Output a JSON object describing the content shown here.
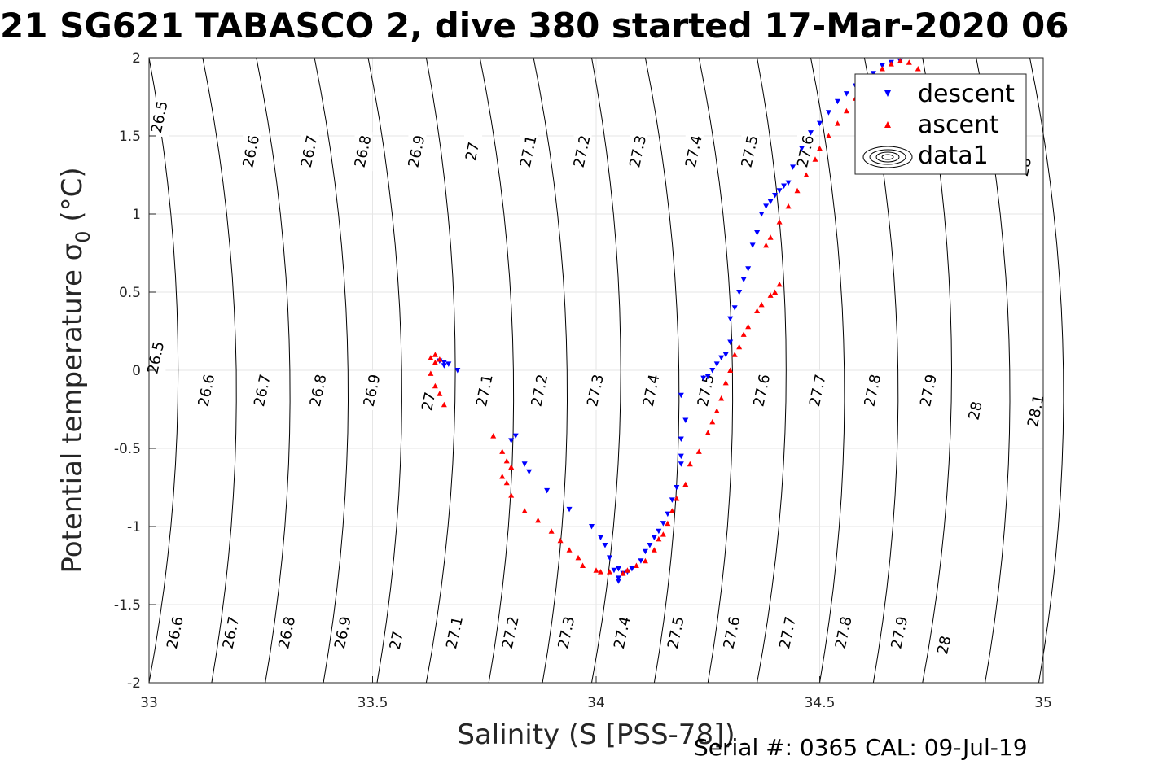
{
  "chart_data": {
    "type": "scatter",
    "title": "21 SG621 TABASCO 2, dive 380 started 17-Mar-2020 06",
    "xlabel": "Salinity (S [PSS-78])",
    "ylabel": "Potential temperature σ",
    "ylabel_sub": "0",
    "ylabel_unit": " (°C)",
    "xlim": [
      33,
      35
    ],
    "ylim": [
      -2,
      2
    ],
    "x_ticks": [
      33,
      33.5,
      34,
      34.5,
      35
    ],
    "x_tick_labels": [
      "33",
      "33.5",
      "34",
      "34.5",
      "35"
    ],
    "y_ticks": [
      -2,
      -1.5,
      -1,
      -0.5,
      0,
      0.5,
      1,
      1.5,
      2
    ],
    "y_tick_labels": [
      "-2",
      "-1.5",
      "-1",
      "-0.5",
      "0",
      "0.5",
      "1",
      "1.5",
      "2"
    ],
    "grid": true,
    "legend": {
      "placement": "top-right",
      "entries": [
        {
          "label": "descent",
          "color": "#0000ff",
          "marker": "triangle-down"
        },
        {
          "label": "ascent",
          "color": "#ff0000",
          "marker": "triangle-up"
        },
        {
          "label": "data1",
          "color": "#000000",
          "marker": "contour"
        }
      ]
    },
    "isopycnals": [
      {
        "sigma": 26.5,
        "s_at_2": 33.0,
        "s_at_0": 32.99
      },
      {
        "sigma": 26.6,
        "s_at_2": 33.12,
        "s_at_0": 33.12
      },
      {
        "sigma": 26.7,
        "s_at_2": 33.24,
        "s_at_0": 33.24
      },
      {
        "sigma": 26.8,
        "s_at_2": 33.37,
        "s_at_0": 33.37
      },
      {
        "sigma": 26.9,
        "s_at_2": 33.49,
        "s_at_0": 33.49
      },
      {
        "sigma": 27.0,
        "s_at_2": 33.62,
        "s_at_0": 33.61
      },
      {
        "sigma": 27.1,
        "s_at_2": 33.74,
        "s_at_0": 33.74
      },
      {
        "sigma": 27.2,
        "s_at_2": 33.86,
        "s_at_0": 33.86
      },
      {
        "sigma": 27.3,
        "s_at_2": 33.99,
        "s_at_0": 33.98
      },
      {
        "sigma": 27.4,
        "s_at_2": 34.11,
        "s_at_0": 34.11
      },
      {
        "sigma": 27.5,
        "s_at_2": 34.23,
        "s_at_0": 34.23
      },
      {
        "sigma": 27.6,
        "s_at_2": 34.36,
        "s_at_0": 34.35
      },
      {
        "sigma": 27.7,
        "s_at_2": 34.48,
        "s_at_0": 34.48
      },
      {
        "sigma": 27.8,
        "s_at_2": 34.6,
        "s_at_0": 34.6
      },
      {
        "sigma": 27.9,
        "s_at_2": 34.73,
        "s_at_0": 34.72
      },
      {
        "sigma": 28.0,
        "s_at_2": 34.85,
        "s_at_0": 34.85
      },
      {
        "sigma": 28.1,
        "s_at_2": 34.97,
        "s_at_0": 34.97
      }
    ],
    "contour_labels": [
      {
        "text": "26.5",
        "s": 33.025,
        "t": 1.62
      },
      {
        "text": "26.6",
        "s": 33.23,
        "t": 1.4
      },
      {
        "text": "26.7",
        "s": 33.36,
        "t": 1.4
      },
      {
        "text": "26.8",
        "s": 33.48,
        "t": 1.4
      },
      {
        "text": "26.9",
        "s": 33.6,
        "t": 1.4
      },
      {
        "text": "27",
        "s": 33.725,
        "t": 1.4
      },
      {
        "text": "27.1",
        "s": 33.85,
        "t": 1.4
      },
      {
        "text": "27.2",
        "s": 33.97,
        "t": 1.4
      },
      {
        "text": "27.3",
        "s": 34.095,
        "t": 1.4
      },
      {
        "text": "27.4",
        "s": 34.22,
        "t": 1.4
      },
      {
        "text": "27.5",
        "s": 34.345,
        "t": 1.4
      },
      {
        "text": "27.6",
        "s": 34.47,
        "t": 1.4
      },
      {
        "text": "28",
        "s": 34.96,
        "t": 1.3
      },
      {
        "text": "26.5",
        "s": 33.017,
        "t": 0.08
      },
      {
        "text": "26.6",
        "s": 33.13,
        "t": -0.13
      },
      {
        "text": "26.7",
        "s": 33.255,
        "t": -0.13
      },
      {
        "text": "26.8",
        "s": 33.38,
        "t": -0.13
      },
      {
        "text": "26.9",
        "s": 33.5,
        "t": -0.13
      },
      {
        "text": "27",
        "s": 33.627,
        "t": -0.2
      },
      {
        "text": "27.1",
        "s": 33.752,
        "t": -0.13
      },
      {
        "text": "27.2",
        "s": 33.875,
        "t": -0.13
      },
      {
        "text": "27.3",
        "s": 34.0,
        "t": -0.13
      },
      {
        "text": "27.4",
        "s": 34.125,
        "t": -0.13
      },
      {
        "text": "27.5",
        "s": 34.247,
        "t": -0.13
      },
      {
        "text": "27.6",
        "s": 34.372,
        "t": -0.13
      },
      {
        "text": "27.7",
        "s": 34.497,
        "t": -0.13
      },
      {
        "text": "27.8",
        "s": 34.62,
        "t": -0.13
      },
      {
        "text": "27.9",
        "s": 34.745,
        "t": -0.13
      },
      {
        "text": "28",
        "s": 34.85,
        "t": -0.26
      },
      {
        "text": "28.1",
        "s": 34.985,
        "t": -0.26
      },
      {
        "text": "26.6",
        "s": 33.06,
        "t": -1.68
      },
      {
        "text": "26.7",
        "s": 33.185,
        "t": -1.68
      },
      {
        "text": "26.8",
        "s": 33.31,
        "t": -1.68
      },
      {
        "text": "26.9",
        "s": 33.435,
        "t": -1.68
      },
      {
        "text": "27",
        "s": 33.555,
        "t": -1.73
      },
      {
        "text": "27.1",
        "s": 33.685,
        "t": -1.68
      },
      {
        "text": "27.2",
        "s": 33.81,
        "t": -1.68
      },
      {
        "text": "27.3",
        "s": 33.935,
        "t": -1.68
      },
      {
        "text": "27.4",
        "s": 34.06,
        "t": -1.68
      },
      {
        "text": "27.5",
        "s": 34.18,
        "t": -1.68
      },
      {
        "text": "27.6",
        "s": 34.305,
        "t": -1.68
      },
      {
        "text": "27.7",
        "s": 34.43,
        "t": -1.68
      },
      {
        "text": "27.8",
        "s": 34.555,
        "t": -1.68
      },
      {
        "text": "27.9",
        "s": 34.68,
        "t": -1.68
      },
      {
        "text": "28",
        "s": 34.78,
        "t": -1.76
      }
    ],
    "series": [
      {
        "name": "descent",
        "color": "#0000ff",
        "marker": "triangle-down",
        "points": [
          [
            33.66,
            0.05
          ],
          [
            33.67,
            0.04
          ],
          [
            33.69,
            0.0
          ],
          [
            33.65,
            0.06
          ],
          [
            33.66,
            0.03
          ],
          [
            33.82,
            -0.42
          ],
          [
            33.81,
            -0.45
          ],
          [
            33.84,
            -0.6
          ],
          [
            33.85,
            -0.65
          ],
          [
            33.89,
            -0.77
          ],
          [
            33.94,
            -0.89
          ],
          [
            33.99,
            -1.0
          ],
          [
            34.01,
            -1.07
          ],
          [
            34.02,
            -1.12
          ],
          [
            34.03,
            -1.2
          ],
          [
            34.04,
            -1.28
          ],
          [
            34.05,
            -1.33
          ],
          [
            34.05,
            -1.35
          ],
          [
            34.06,
            -1.3
          ],
          [
            34.07,
            -1.29
          ],
          [
            34.08,
            -1.27
          ],
          [
            34.05,
            -1.27
          ],
          [
            34.1,
            -1.22
          ],
          [
            34.11,
            -1.16
          ],
          [
            34.12,
            -1.12
          ],
          [
            34.13,
            -1.07
          ],
          [
            34.14,
            -1.03
          ],
          [
            34.15,
            -0.98
          ],
          [
            34.16,
            -0.92
          ],
          [
            34.17,
            -0.83
          ],
          [
            34.18,
            -0.75
          ],
          [
            34.19,
            -0.6
          ],
          [
            34.19,
            -0.55
          ],
          [
            34.19,
            -0.44
          ],
          [
            34.2,
            -0.32
          ],
          [
            34.19,
            -0.16
          ],
          [
            34.24,
            -0.05
          ],
          [
            34.25,
            -0.04
          ],
          [
            34.26,
            0.0
          ],
          [
            34.27,
            0.04
          ],
          [
            34.28,
            0.08
          ],
          [
            34.29,
            0.1
          ],
          [
            34.3,
            0.18
          ],
          [
            34.3,
            0.33
          ],
          [
            34.31,
            0.4
          ],
          [
            34.32,
            0.5
          ],
          [
            34.33,
            0.58
          ],
          [
            34.34,
            0.65
          ],
          [
            34.35,
            0.8
          ],
          [
            34.36,
            0.88
          ],
          [
            34.37,
            1.0
          ],
          [
            34.38,
            1.05
          ],
          [
            34.39,
            1.08
          ],
          [
            34.4,
            1.12
          ],
          [
            34.41,
            1.15
          ],
          [
            34.42,
            1.18
          ],
          [
            34.43,
            1.2
          ],
          [
            34.44,
            1.3
          ],
          [
            34.46,
            1.42
          ],
          [
            34.48,
            1.52
          ],
          [
            34.5,
            1.58
          ],
          [
            34.52,
            1.65
          ],
          [
            34.54,
            1.72
          ],
          [
            34.56,
            1.77
          ],
          [
            34.58,
            1.82
          ],
          [
            34.6,
            1.86
          ],
          [
            34.62,
            1.9
          ],
          [
            34.64,
            1.95
          ],
          [
            34.66,
            1.97
          ],
          [
            34.68,
            1.98
          ]
        ]
      },
      {
        "name": "ascent",
        "color": "#ff0000",
        "marker": "triangle-up",
        "points": [
          [
            33.63,
            0.08
          ],
          [
            33.64,
            0.1
          ],
          [
            33.65,
            0.07
          ],
          [
            33.64,
            0.05
          ],
          [
            33.63,
            -0.02
          ],
          [
            33.64,
            -0.1
          ],
          [
            33.65,
            -0.15
          ],
          [
            33.66,
            -0.22
          ],
          [
            33.77,
            -0.42
          ],
          [
            33.79,
            -0.52
          ],
          [
            33.8,
            -0.58
          ],
          [
            33.81,
            -0.62
          ],
          [
            33.79,
            -0.68
          ],
          [
            33.8,
            -0.72
          ],
          [
            33.81,
            -0.8
          ],
          [
            33.84,
            -0.9
          ],
          [
            33.87,
            -0.96
          ],
          [
            33.9,
            -1.03
          ],
          [
            33.92,
            -1.09
          ],
          [
            33.94,
            -1.15
          ],
          [
            33.96,
            -1.2
          ],
          [
            33.97,
            -1.25
          ],
          [
            34.0,
            -1.28
          ],
          [
            34.01,
            -1.29
          ],
          [
            34.03,
            -1.29
          ],
          [
            34.06,
            -1.3
          ],
          [
            34.07,
            -1.28
          ],
          [
            34.09,
            -1.25
          ],
          [
            34.11,
            -1.22
          ],
          [
            34.13,
            -1.15
          ],
          [
            34.14,
            -1.08
          ],
          [
            34.15,
            -1.05
          ],
          [
            34.16,
            -0.98
          ],
          [
            34.17,
            -0.9
          ],
          [
            34.18,
            -0.82
          ],
          [
            34.2,
            -0.73
          ],
          [
            34.21,
            -0.6
          ],
          [
            34.23,
            -0.52
          ],
          [
            34.25,
            -0.4
          ],
          [
            34.26,
            -0.33
          ],
          [
            34.27,
            -0.26
          ],
          [
            34.28,
            -0.18
          ],
          [
            34.29,
            -0.08
          ],
          [
            34.3,
            0.0
          ],
          [
            34.31,
            0.1
          ],
          [
            34.32,
            0.15
          ],
          [
            34.33,
            0.23
          ],
          [
            34.34,
            0.28
          ],
          [
            34.36,
            0.38
          ],
          [
            34.37,
            0.42
          ],
          [
            34.39,
            0.48
          ],
          [
            34.4,
            0.5
          ],
          [
            34.41,
            0.55
          ],
          [
            34.38,
            0.8
          ],
          [
            34.39,
            0.85
          ],
          [
            34.41,
            0.95
          ],
          [
            34.43,
            1.05
          ],
          [
            34.45,
            1.15
          ],
          [
            34.47,
            1.25
          ],
          [
            34.49,
            1.35
          ],
          [
            34.5,
            1.42
          ],
          [
            34.52,
            1.5
          ],
          [
            34.54,
            1.58
          ],
          [
            34.56,
            1.66
          ],
          [
            34.58,
            1.74
          ],
          [
            34.6,
            1.82
          ],
          [
            34.62,
            1.88
          ],
          [
            34.64,
            1.93
          ],
          [
            34.66,
            1.96
          ],
          [
            34.68,
            1.98
          ],
          [
            34.7,
            1.97
          ],
          [
            34.72,
            1.93
          ]
        ]
      }
    ]
  },
  "footer": {
    "text": "Serial #: 0365  CAL: 09-Jul-19"
  }
}
